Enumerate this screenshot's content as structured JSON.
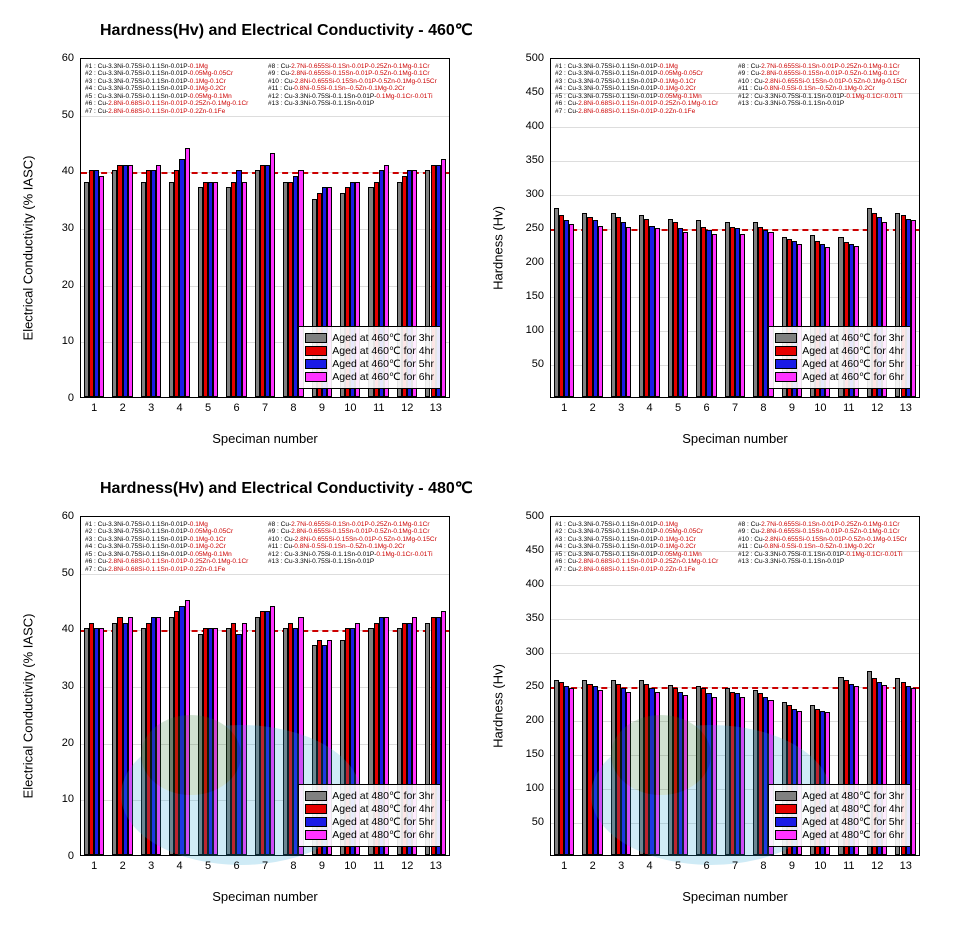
{
  "series_colors": {
    "3hr": "#808080",
    "4hr": "#e60000",
    "5hr": "#1a1ae6",
    "6hr": "#ff33ff"
  },
  "ref_line_color": "#cc0000",
  "border_color": "#000000",
  "grid_color": "#dddddd",
  "background_color": "#ffffff",
  "annotations_left": [
    "#1 : Cu-3.3Ni-0.75Si-0.1.1Sn-0.01P-",
    "#2 : Cu-3.3Ni-0.75Si-0.1.1Sn-0.01P-",
    "#3 : Cu-3.3Ni-0.75Si-0.1.1Sn-0.01P-",
    "#4 : Cu-3.3Ni-0.75Si-0.1.1Sn-0.01P-",
    "#5 : Cu-3.3Ni-0.75Si-0.1.1Sn-0.01P-",
    "#6 : Cu-",
    "#7 : Cu-"
  ],
  "annotations_left_red": [
    "0.1Mg",
    "0.05Mg-0.05Cr",
    "0.1Mg-0.1Cr",
    "0.1Mg-0.2Cr",
    "0.05Mg-0.1Mn",
    "2.8Ni-0.68Si-0.1.1Sn-0.01P-0.25Zn-0.1Mg-0.1Cr",
    "2.8Ni-0.68Si-0.1.1Sn-0.01P-0.2Zn-0.1Fe"
  ],
  "annotations_right": [
    "#8 : Cu-",
    "#9 : Cu-",
    "#10 : Cu-",
    "#11 : Cu-",
    "#12 : Cu-3.3Ni-0.75Si-0.1.1Sn-0.01P-",
    "#13 : Cu-3.3Ni-0.75Si-0.1.1Sn-0.01P"
  ],
  "annotations_right_red": [
    "2.7Ni-0.655Si-0.1Sn-0.01P-0.25Zn-0.1Mg-0.1Cr",
    "2.8Ni-0.655Si-0.15Sn-0.01P-0.5Zn-0.1Mg-0.1Cr",
    "2.8Ni-0.655Si-0.15Sn-0.01P-0.5Zn-0.1Mg-0.15Cr",
    "0.8Ni-0.5Si-0.1Sn--0.5Zn-0.1Mg-0.2Cr",
    "0.1Mg-0.1Cr-0.01Ti",
    ""
  ],
  "charts": [
    {
      "title": "Hardness(Hv) and Electrical Conductivity - 460℃",
      "panels": [
        {
          "id": "ec460",
          "type": "bar",
          "ylabel": "Electrical Conductivity (% IASC)",
          "xlabel": "Speciman number",
          "ylim": [
            0,
            60
          ],
          "ytick_step": 10,
          "xcats": [
            1,
            2,
            3,
            4,
            5,
            6,
            7,
            8,
            9,
            10,
            11,
            12,
            13
          ],
          "ref_y": 40,
          "legend_pos": "bottom-right",
          "legend_temp": "460℃",
          "watermark": false,
          "data": {
            "3hr": [
              38,
              40,
              38,
              38,
              37,
              37,
              40,
              38,
              35,
              36,
              37,
              38,
              40
            ],
            "4hr": [
              40,
              41,
              40,
              40,
              38,
              38,
              41,
              38,
              36,
              37,
              38,
              39,
              41
            ],
            "5hr": [
              40,
              41,
              40,
              42,
              38,
              40,
              41,
              39,
              37,
              38,
              40,
              40,
              41
            ],
            "6hr": [
              39,
              41,
              41,
              44,
              38,
              38,
              43,
              40,
              37,
              38,
              41,
              40,
              42
            ]
          }
        },
        {
          "id": "hv460",
          "type": "bar",
          "ylabel": "Hardness (Hv)",
          "xlabel": "Speciman number",
          "ylim": [
            0,
            500
          ],
          "ytick_step": 50,
          "ytick_start": 50,
          "xcats": [
            1,
            2,
            3,
            4,
            5,
            6,
            7,
            8,
            9,
            10,
            11,
            12,
            13
          ],
          "ref_y": 250,
          "legend_pos": "bottom-right",
          "legend_temp": "460℃",
          "watermark": false,
          "data": {
            "3hr": [
              278,
              270,
              270,
              268,
              262,
              260,
              258,
              258,
              235,
              238,
              235,
              278,
              270
            ],
            "4hr": [
              268,
              265,
              265,
              262,
              258,
              250,
              250,
              250,
              232,
              230,
              228,
              270,
              268
            ],
            "5hr": [
              260,
              260,
              258,
              252,
              248,
              245,
              248,
              245,
              230,
              225,
              225,
              265,
              262
            ],
            "6hr": [
              255,
              252,
              250,
              248,
              242,
              240,
              240,
              242,
              225,
              220,
              222,
              258,
              260
            ]
          }
        }
      ]
    },
    {
      "title": "Hardness(Hv) and Electrical Conductivity - 480℃",
      "panels": [
        {
          "id": "ec480",
          "type": "bar",
          "ylabel": "Electrical Conductivity (% IASC)",
          "xlabel": "Speciman number",
          "ylim": [
            0,
            60
          ],
          "ytick_step": 10,
          "xcats": [
            1,
            2,
            3,
            4,
            5,
            6,
            7,
            8,
            9,
            10,
            11,
            12,
            13
          ],
          "ref_y": 40,
          "legend_pos": "bottom-right",
          "legend_temp": "480℃",
          "watermark": true,
          "data": {
            "3hr": [
              40,
              41,
              40,
              42,
              39,
              40,
              42,
              40,
              37,
              38,
              40,
              40,
              41
            ],
            "4hr": [
              41,
              42,
              41,
              43,
              40,
              41,
              43,
              41,
              38,
              40,
              41,
              41,
              42
            ],
            "5hr": [
              40,
              41,
              42,
              44,
              40,
              39,
              43,
              40,
              37,
              40,
              42,
              41,
              42
            ],
            "6hr": [
              40,
              42,
              42,
              45,
              40,
              41,
              44,
              42,
              38,
              41,
              42,
              42,
              43
            ]
          }
        },
        {
          "id": "hv480",
          "type": "bar",
          "ylabel": "Hardness (Hv)",
          "xlabel": "Speciman number",
          "ylim": [
            0,
            500
          ],
          "ytick_step": 50,
          "ytick_start": 50,
          "xcats": [
            1,
            2,
            3,
            4,
            5,
            6,
            7,
            8,
            9,
            10,
            11,
            12,
            13
          ],
          "ref_y": 250,
          "legend_pos": "bottom-right",
          "legend_temp": "480℃",
          "watermark": true,
          "data": {
            "3hr": [
              258,
              258,
              258,
              258,
              250,
              248,
              245,
              242,
              225,
              220,
              262,
              270,
              260
            ],
            "4hr": [
              255,
              252,
              252,
              252,
              245,
              245,
              240,
              238,
              220,
              215,
              258,
              260,
              255
            ],
            "5hr": [
              248,
              248,
              245,
              245,
              240,
              238,
              238,
              232,
              215,
              212,
              252,
              255,
              248
            ],
            "6hr": [
              245,
              242,
              240,
              240,
              235,
              232,
              232,
              228,
              212,
              210,
              248,
              250,
              245
            ]
          }
        }
      ]
    }
  ]
}
